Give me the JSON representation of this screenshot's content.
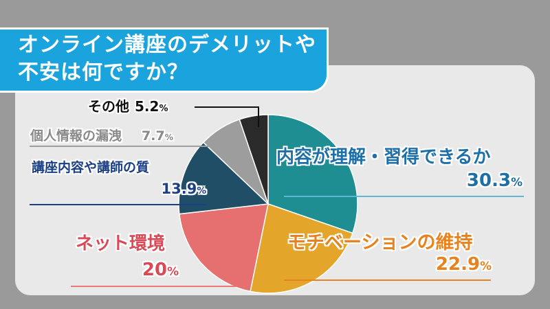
{
  "title": {
    "line1": "オンライン講座のデメリットや",
    "line2": "不安は何ですか？"
  },
  "colors": {
    "background": "#9a9a9a",
    "panel": "#e9e9e9",
    "banner": "#1ba3dd"
  },
  "chart_data": {
    "type": "pie",
    "title": "オンライン講座のデメリットや不安は何ですか？",
    "unit": "%",
    "slices": [
      {
        "label": "内容が理解・習得できるか",
        "value": 30.3,
        "value_text": "30.3",
        "color": "#1e8e93",
        "label_color": "#1e6fa8"
      },
      {
        "label": "モチベーションの維持",
        "value": 22.9,
        "value_text": "22.9",
        "color": "#e3a52a",
        "label_color": "#e8821e"
      },
      {
        "label": "ネット環境",
        "value": 20,
        "value_text": "20",
        "color": "#e67070",
        "label_color": "#d94a57"
      },
      {
        "label": "講座内容や講師の質",
        "value": 13.9,
        "value_text": "13.9",
        "color": "#1f4e66",
        "label_color": "#1b3f86"
      },
      {
        "label": "個人情報の漏洩",
        "value": 7.7,
        "value_text": "7.7",
        "color": "#9d9d9d",
        "label_color": "#8a8a8a"
      },
      {
        "label": "その他",
        "value": 5.2,
        "value_text": "5.2",
        "color": "#2a2a2a",
        "label_color": "#111111"
      }
    ]
  }
}
